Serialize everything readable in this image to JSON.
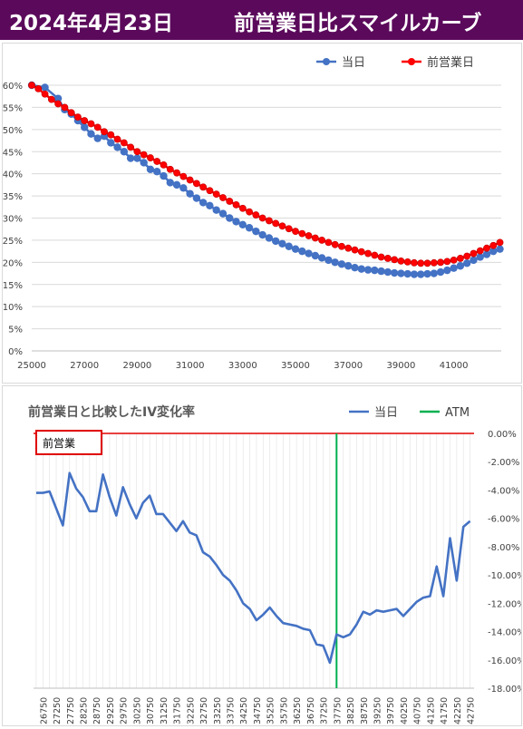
{
  "header": {
    "date": "2024年4月23日",
    "title": "前営業日比スマイルカーブ"
  },
  "colors": {
    "banner": "#5b0a5b",
    "today": "#4472c4",
    "prev": "#ff0000",
    "iv_line": "#4472c4",
    "atm": "#00b050",
    "box": "#e00000",
    "grid": "#d9d9d9"
  },
  "chart_data": [
    {
      "type": "line",
      "title": "",
      "xlabel": "",
      "ylabel": "",
      "xlim": [
        25000,
        42800
      ],
      "ylim": [
        0,
        60
      ],
      "x_ticks": [
        25000,
        27000,
        29000,
        31000,
        33000,
        35000,
        37000,
        39000,
        41000
      ],
      "y_ticks": [
        "0%",
        "5%",
        "10%",
        "15%",
        "20%",
        "25%",
        "30%",
        "35%",
        "40%",
        "45%",
        "50%",
        "55%",
        "60%"
      ],
      "legend": {
        "position": "top-right",
        "items": [
          "当日",
          "前営業日"
        ]
      },
      "grid": true,
      "series": [
        {
          "name": "当日",
          "x": [
            25000,
            25500,
            26000,
            26250,
            26500,
            26750,
            27000,
            27250,
            27500,
            27750,
            28000,
            28250,
            28500,
            28750,
            29000,
            29250,
            29500,
            29750,
            30000,
            30250,
            30500,
            30750,
            31000,
            31250,
            31500,
            31750,
            32000,
            32250,
            32500,
            32750,
            33000,
            33250,
            33500,
            33750,
            34000,
            34250,
            34500,
            34750,
            35000,
            35250,
            35500,
            35750,
            36000,
            36250,
            36500,
            36750,
            37000,
            37250,
            37500,
            37750,
            38000,
            38250,
            38500,
            38750,
            39000,
            39250,
            39500,
            39750,
            40000,
            40250,
            40500,
            40750,
            41000,
            41250,
            41500,
            41750,
            42000,
            42250,
            42500,
            42750
          ],
          "values": [
            60.0,
            59.5,
            57.0,
            54.5,
            53.5,
            52.0,
            50.5,
            49.0,
            48.0,
            48.5,
            47.0,
            46.0,
            45.0,
            43.5,
            43.5,
            42.5,
            41.0,
            40.5,
            39.5,
            38.0,
            37.5,
            36.8,
            35.5,
            34.5,
            33.5,
            32.8,
            31.8,
            31.0,
            30.0,
            29.2,
            28.5,
            27.8,
            27.0,
            26.2,
            25.5,
            24.8,
            24.2,
            23.6,
            23.0,
            22.5,
            22.0,
            21.5,
            21.0,
            20.5,
            20.0,
            19.6,
            19.2,
            18.8,
            18.5,
            18.3,
            18.2,
            18.0,
            17.8,
            17.6,
            17.5,
            17.4,
            17.3,
            17.3,
            17.4,
            17.5,
            17.8,
            18.2,
            18.7,
            19.2,
            19.8,
            20.5,
            21.2,
            21.8,
            22.5,
            23.0
          ]
        },
        {
          "name": "前営業日",
          "x": [
            25000,
            25250,
            25500,
            25750,
            26000,
            26250,
            26500,
            26750,
            27000,
            27250,
            27500,
            27750,
            28000,
            28250,
            28500,
            28750,
            29000,
            29250,
            29500,
            29750,
            30000,
            30250,
            30500,
            30750,
            31000,
            31250,
            31500,
            31750,
            32000,
            32250,
            32500,
            32750,
            33000,
            33250,
            33500,
            33750,
            34000,
            34250,
            34500,
            34750,
            35000,
            35250,
            35500,
            35750,
            36000,
            36250,
            36500,
            36750,
            37000,
            37250,
            37500,
            37750,
            38000,
            38250,
            38500,
            38750,
            39000,
            39250,
            39500,
            39750,
            40000,
            40250,
            40500,
            40750,
            41000,
            41250,
            41500,
            41750,
            42000,
            42250,
            42500,
            42750
          ],
          "values": [
            60.0,
            59.2,
            58.0,
            56.8,
            55.8,
            55.0,
            53.8,
            52.8,
            52.0,
            51.3,
            50.5,
            49.5,
            48.8,
            47.8,
            47.0,
            46.0,
            45.0,
            44.3,
            43.6,
            42.8,
            42.0,
            41.0,
            40.2,
            39.4,
            38.6,
            37.8,
            37.0,
            36.2,
            35.4,
            34.6,
            33.8,
            33.0,
            32.2,
            31.4,
            30.7,
            30.0,
            29.4,
            28.8,
            28.2,
            27.6,
            27.0,
            26.5,
            26.0,
            25.5,
            25.0,
            24.5,
            24.0,
            23.6,
            23.2,
            22.8,
            22.4,
            22.0,
            21.6,
            21.2,
            20.9,
            20.6,
            20.3,
            20.1,
            19.9,
            19.8,
            19.8,
            19.9,
            20.0,
            20.2,
            20.5,
            20.9,
            21.4,
            22.0,
            22.6,
            23.2,
            23.8,
            24.5
          ]
        }
      ]
    },
    {
      "type": "line",
      "title": "前営業日と比較したIV変化率",
      "box_label": "前営業",
      "xlabel": "",
      "ylabel": "",
      "ylim": [
        -18,
        0
      ],
      "y_ticks": [
        "0.00%",
        "-2.00%",
        "-4.00%",
        "-6.00%",
        "-8.00%",
        "-10.00%",
        "-12.00%",
        "-14.00%",
        "-16.00%",
        "-18.00%"
      ],
      "categories": [
        "26750",
        "27250",
        "27750",
        "28250",
        "28750",
        "29250",
        "29750",
        "30250",
        "30750",
        "31250",
        "31750",
        "32250",
        "32750",
        "33250",
        "33750",
        "34250",
        "34750",
        "35250",
        "35750",
        "36250",
        "36750",
        "37250",
        "37750",
        "38250",
        "38750",
        "39250",
        "39750",
        "40250",
        "40750",
        "41250",
        "41750",
        "42250",
        "42750"
      ],
      "atm": "37750",
      "legend": {
        "position": "top-right",
        "items": [
          "当日",
          "ATM"
        ]
      },
      "series": [
        {
          "name": "当日",
          "x": [
            26500,
            26750,
            27000,
            27250,
            27500,
            27750,
            28000,
            28250,
            28500,
            28750,
            29000,
            29250,
            29500,
            29750,
            30000,
            30250,
            30500,
            30750,
            31000,
            31250,
            31500,
            31750,
            32000,
            32250,
            32500,
            32750,
            33000,
            33250,
            33500,
            33750,
            34000,
            34250,
            34500,
            34750,
            35000,
            35250,
            35500,
            35750,
            36000,
            36250,
            36500,
            36750,
            37000,
            37250,
            37500,
            37750,
            38000,
            38250,
            38500,
            38750,
            39000,
            39250,
            39500,
            39750,
            40000,
            40250,
            40500,
            40750,
            41000,
            41250,
            41500,
            41750,
            42000,
            42250,
            42500,
            42750
          ],
          "values": [
            -4.2,
            -4.2,
            -4.1,
            -5.3,
            -6.5,
            -2.8,
            -3.9,
            -4.5,
            -5.5,
            -5.5,
            -2.9,
            -4.5,
            -5.8,
            -3.8,
            -5.0,
            -6.0,
            -4.9,
            -4.4,
            -5.7,
            -5.7,
            -6.3,
            -6.9,
            -6.2,
            -7.0,
            -7.2,
            -8.4,
            -8.7,
            -9.3,
            -10.0,
            -10.4,
            -11.1,
            -12.0,
            -12.4,
            -13.2,
            -12.8,
            -12.3,
            -12.9,
            -13.4,
            -13.5,
            -13.6,
            -13.8,
            -13.9,
            -14.9,
            -15.0,
            -16.2,
            -14.2,
            -14.4,
            -14.2,
            -13.5,
            -12.6,
            -12.8,
            -12.5,
            -12.6,
            -12.5,
            -12.4,
            -12.9,
            -12.4,
            -11.9,
            -11.6,
            -11.5,
            -9.4,
            -11.5,
            -7.4,
            -10.4,
            -6.6,
            -6.2
          ]
        }
      ]
    }
  ]
}
